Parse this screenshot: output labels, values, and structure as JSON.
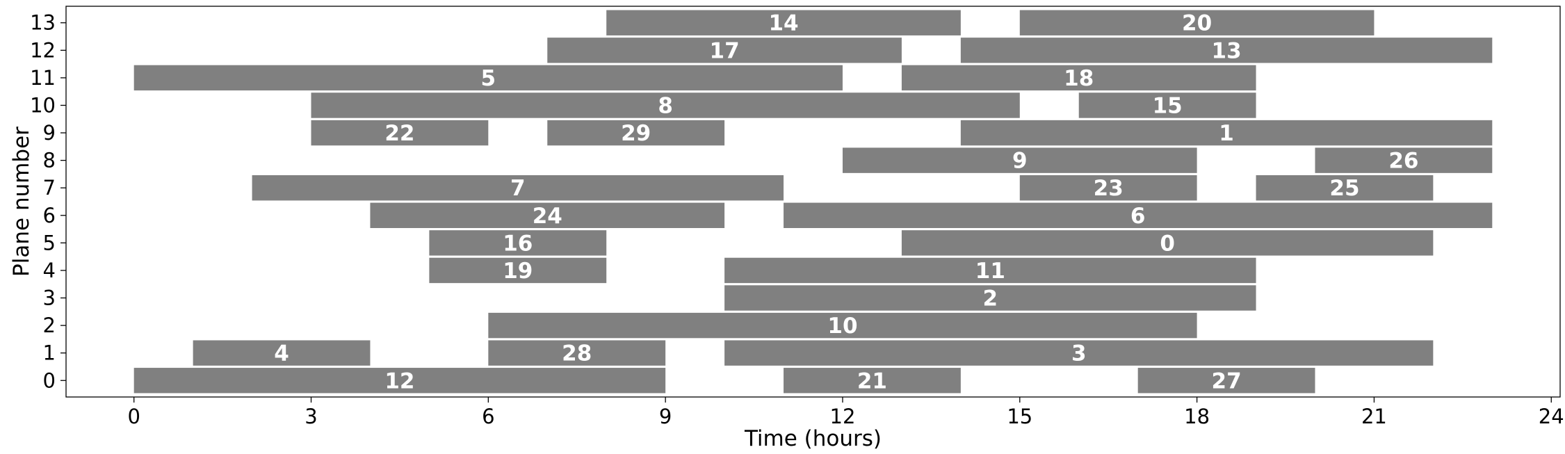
{
  "chart_data": {
    "type": "bar",
    "orientation": "gantt",
    "title": "",
    "xlabel": "Time (hours)",
    "ylabel": "Plane number",
    "xlim": [
      -1.15,
      24.15
    ],
    "ylim": [
      -0.6,
      13.6
    ],
    "xticks": [
      0,
      3,
      6,
      9,
      12,
      15,
      18,
      21,
      24
    ],
    "yticks": [
      0,
      1,
      2,
      3,
      4,
      5,
      6,
      7,
      8,
      9,
      10,
      11,
      12,
      13
    ],
    "grid": false,
    "legend": "none",
    "bar_color": "#808080",
    "label_color": "#ffffff",
    "tasks": [
      {
        "id": "12",
        "plane": 0,
        "start": 0,
        "end": 9
      },
      {
        "id": "21",
        "plane": 0,
        "start": 11,
        "end": 14
      },
      {
        "id": "27",
        "plane": 0,
        "start": 17,
        "end": 20
      },
      {
        "id": "4",
        "plane": 1,
        "start": 1,
        "end": 4
      },
      {
        "id": "28",
        "plane": 1,
        "start": 6,
        "end": 9
      },
      {
        "id": "3",
        "plane": 1,
        "start": 10,
        "end": 22
      },
      {
        "id": "10",
        "plane": 2,
        "start": 6,
        "end": 18
      },
      {
        "id": "2",
        "plane": 3,
        "start": 10,
        "end": 19
      },
      {
        "id": "19",
        "plane": 4,
        "start": 5,
        "end": 8
      },
      {
        "id": "11",
        "plane": 4,
        "start": 10,
        "end": 19
      },
      {
        "id": "16",
        "plane": 5,
        "start": 5,
        "end": 8
      },
      {
        "id": "0",
        "plane": 5,
        "start": 13,
        "end": 22
      },
      {
        "id": "24",
        "plane": 6,
        "start": 4,
        "end": 10
      },
      {
        "id": "6",
        "plane": 6,
        "start": 11,
        "end": 23
      },
      {
        "id": "7",
        "plane": 7,
        "start": 2,
        "end": 11
      },
      {
        "id": "23",
        "plane": 7,
        "start": 15,
        "end": 18
      },
      {
        "id": "25",
        "plane": 7,
        "start": 19,
        "end": 22
      },
      {
        "id": "9",
        "plane": 8,
        "start": 12,
        "end": 18
      },
      {
        "id": "26",
        "plane": 8,
        "start": 20,
        "end": 23
      },
      {
        "id": "22",
        "plane": 9,
        "start": 3,
        "end": 6
      },
      {
        "id": "29",
        "plane": 9,
        "start": 7,
        "end": 10
      },
      {
        "id": "1",
        "plane": 9,
        "start": 14,
        "end": 23
      },
      {
        "id": "8",
        "plane": 10,
        "start": 3,
        "end": 15
      },
      {
        "id": "15",
        "plane": 10,
        "start": 16,
        "end": 19
      },
      {
        "id": "5",
        "plane": 11,
        "start": 0,
        "end": 12
      },
      {
        "id": "18",
        "plane": 11,
        "start": 13,
        "end": 19
      },
      {
        "id": "17",
        "plane": 12,
        "start": 7,
        "end": 13
      },
      {
        "id": "13",
        "plane": 12,
        "start": 14,
        "end": 23
      },
      {
        "id": "14",
        "plane": 13,
        "start": 8,
        "end": 14
      },
      {
        "id": "20",
        "plane": 13,
        "start": 15,
        "end": 21
      }
    ]
  }
}
